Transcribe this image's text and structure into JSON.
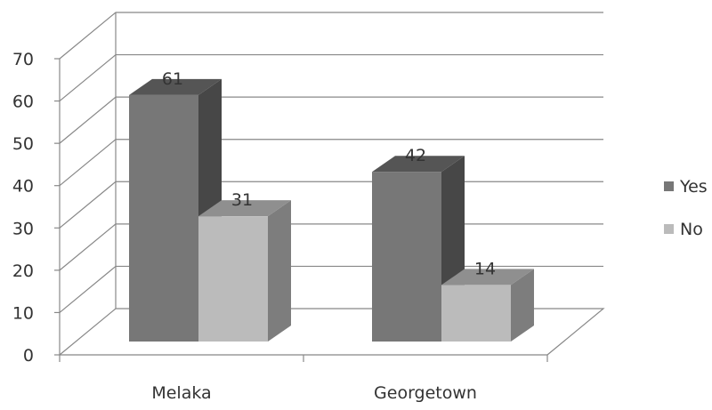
{
  "chart_data": {
    "type": "bar",
    "categories": [
      "Melaka",
      "Georgetown"
    ],
    "series": [
      {
        "name": "Yes",
        "values": [
          61,
          42
        ],
        "color": "#777777"
      },
      {
        "name": "No",
        "values": [
          31,
          14
        ],
        "color": "#bbbbbb"
      }
    ],
    "ylim": [
      0,
      70
    ],
    "yticks": [
      "0",
      "10",
      "20",
      "30",
      "40",
      "50",
      "60",
      "70"
    ],
    "data_labels": true,
    "grid": true,
    "legend": "right",
    "style": "3d"
  }
}
